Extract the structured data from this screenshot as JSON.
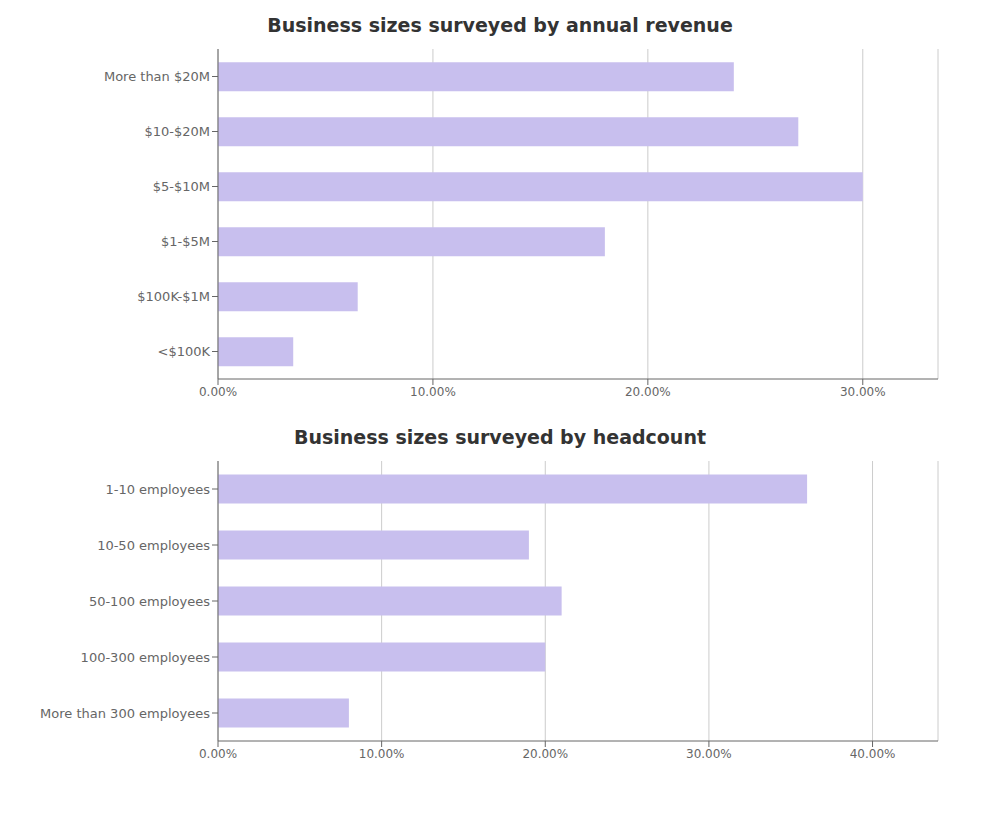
{
  "chart_data": [
    {
      "type": "bar",
      "title": "Business sizes surveyed by annual revenue",
      "orientation": "horizontal",
      "categories": [
        "<$100K",
        "$100K-$1M",
        "$1-$5M",
        "$5-$10M",
        "$10-$20M",
        "More than $20M"
      ],
      "values": [
        0.035,
        0.065,
        0.18,
        0.3,
        0.27,
        0.24
      ],
      "color": "#c8bfee",
      "xlim": [
        0,
        0.335
      ],
      "xticks": [
        {
          "value": 0.0,
          "label": "0.00%"
        },
        {
          "value": 0.1,
          "label": "10.00%"
        },
        {
          "value": 0.2,
          "label": "20.00%"
        },
        {
          "value": 0.3,
          "label": "30.00%"
        }
      ],
      "grid": true
    },
    {
      "type": "bar",
      "title": "Business sizes surveyed by headcount",
      "orientation": "horizontal",
      "categories": [
        "More than 300 employees",
        "100-300 employees",
        "50-100 employees",
        "10-50 employees",
        "1-10 employees"
      ],
      "values": [
        0.08,
        0.2,
        0.21,
        0.19,
        0.36
      ],
      "color": "#c8bfee",
      "xlim": [
        0,
        0.44
      ],
      "xticks": [
        {
          "value": 0.0,
          "label": "0.00%"
        },
        {
          "value": 0.1,
          "label": "10.00%"
        },
        {
          "value": 0.2,
          "label": "20.00%"
        },
        {
          "value": 0.3,
          "label": "30.00%"
        },
        {
          "value": 0.4,
          "label": "40.00%"
        }
      ],
      "grid": true
    }
  ]
}
